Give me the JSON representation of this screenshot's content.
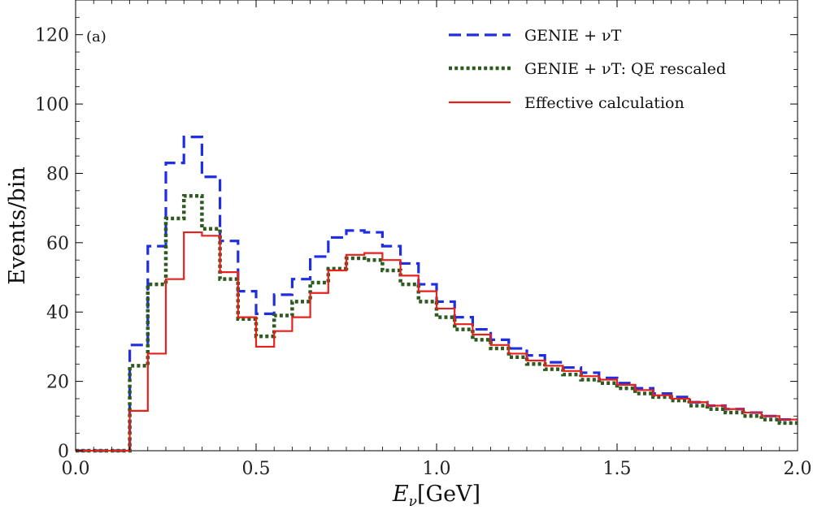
{
  "chart_data": {
    "type": "line",
    "step": true,
    "panel_label": "(a)",
    "xlabel_var": "E",
    "xlabel_sub": "ν",
    "xlabel_unit": "[GeV]",
    "ylabel": "Events/bin",
    "xlim": [
      0,
      2.0
    ],
    "ylim": [
      0,
      130
    ],
    "x_ticks": [
      0.0,
      0.5,
      1.0,
      1.5,
      2.0
    ],
    "x_tick_labels": [
      "0.0",
      "0.5",
      "1.0",
      "1.5",
      "2.0"
    ],
    "y_ticks": [
      0,
      20,
      40,
      60,
      80,
      100,
      120
    ],
    "y_tick_labels": [
      "0",
      "20",
      "40",
      "60",
      "80",
      "100",
      "120"
    ],
    "legend_position": "top-right",
    "bin_edges": [
      0.0,
      0.05,
      0.1,
      0.15,
      0.2,
      0.25,
      0.3,
      0.35,
      0.4,
      0.45,
      0.5,
      0.55,
      0.6,
      0.65,
      0.7,
      0.75,
      0.8,
      0.85,
      0.9,
      0.95,
      1.0,
      1.05,
      1.1,
      1.15,
      1.2,
      1.25,
      1.3,
      1.35,
      1.4,
      1.45,
      1.5,
      1.55,
      1.6,
      1.65,
      1.7,
      1.75,
      1.8,
      1.85,
      1.9,
      1.95,
      2.0
    ],
    "series": [
      {
        "name": "GENIE + νT",
        "color": "#1f2fe0",
        "style": "dashed",
        "values": [
          0,
          0,
          0,
          30.5,
          59,
          83,
          90.5,
          79,
          60.5,
          46,
          39.5,
          45,
          49.5,
          56,
          61.5,
          63.5,
          63,
          59,
          54,
          48,
          43,
          38.5,
          35,
          32,
          29.5,
          27.5,
          25.5,
          24,
          22.5,
          21,
          19.5,
          18,
          16.5,
          15.5,
          14,
          13,
          12,
          11,
          10,
          9
        ]
      },
      {
        "name": "GENIE + νT: QE rescaled",
        "color": "#2d5a1e",
        "style": "dotted",
        "values": [
          0,
          0,
          0,
          24.5,
          48,
          67,
          73.5,
          64,
          49.5,
          38,
          33,
          39,
          43,
          48.5,
          52.5,
          55.5,
          55,
          52,
          48,
          43,
          38.5,
          35,
          32,
          29.5,
          27,
          25,
          23.5,
          22,
          20.5,
          19.5,
          18,
          16.5,
          15.5,
          14.5,
          13,
          12,
          11,
          10,
          9,
          8
        ]
      },
      {
        "name": "Effective calculation",
        "color": "#e8201c",
        "style": "solid",
        "values": [
          0,
          0,
          0,
          11.5,
          28,
          49.5,
          63,
          62,
          51.5,
          38.5,
          30,
          34.5,
          38.5,
          45.5,
          52,
          56.5,
          57,
          55,
          50.5,
          46,
          41,
          36.5,
          33.5,
          30.5,
          28,
          26,
          24.5,
          23,
          21.5,
          20.5,
          19,
          17.5,
          16,
          15,
          14,
          13,
          12,
          11,
          10,
          9
        ]
      }
    ]
  }
}
